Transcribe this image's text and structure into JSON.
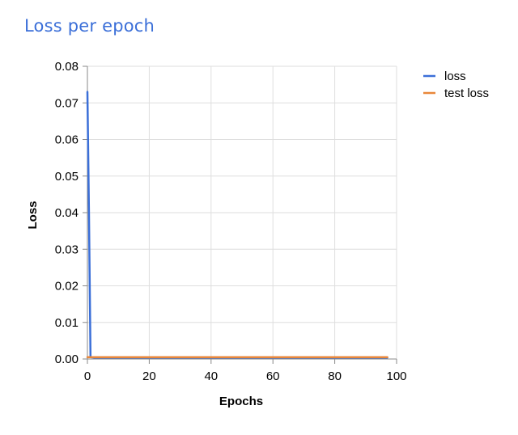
{
  "chart_data": {
    "type": "line",
    "title": "Loss per epoch",
    "xlabel": "Epochs",
    "ylabel": "Loss",
    "xlim": [
      0,
      100
    ],
    "ylim": [
      0,
      0.08
    ],
    "x_ticks": [
      0,
      20,
      40,
      60,
      80,
      100
    ],
    "y_ticks": [
      0.0,
      0.01,
      0.02,
      0.03,
      0.04,
      0.05,
      0.06,
      0.07,
      0.08
    ],
    "y_tick_labels": [
      "0.00",
      "0.01",
      "0.02",
      "0.03",
      "0.04",
      "0.05",
      "0.06",
      "0.07",
      "0.08"
    ],
    "grid": true,
    "legend_position": "top-right",
    "series": [
      {
        "name": "loss",
        "color": "#3b6fd8",
        "x": [
          0,
          0.5,
          1,
          2,
          5,
          10,
          20,
          30,
          40,
          50,
          60,
          70,
          80,
          90,
          97
        ],
        "y": [
          0.073,
          0.04,
          0.0005,
          0.0004,
          0.0004,
          0.0004,
          0.0004,
          0.0004,
          0.0004,
          0.0004,
          0.0004,
          0.0004,
          0.0004,
          0.0004,
          0.0004
        ]
      },
      {
        "name": "test loss",
        "color": "#e8873a",
        "x": [
          0,
          10,
          20,
          30,
          40,
          50,
          60,
          70,
          80,
          90,
          97
        ],
        "y": [
          0.0005,
          0.0005,
          0.0005,
          0.0005,
          0.0005,
          0.0005,
          0.0005,
          0.0005,
          0.0005,
          0.0005,
          0.0005
        ]
      }
    ]
  }
}
